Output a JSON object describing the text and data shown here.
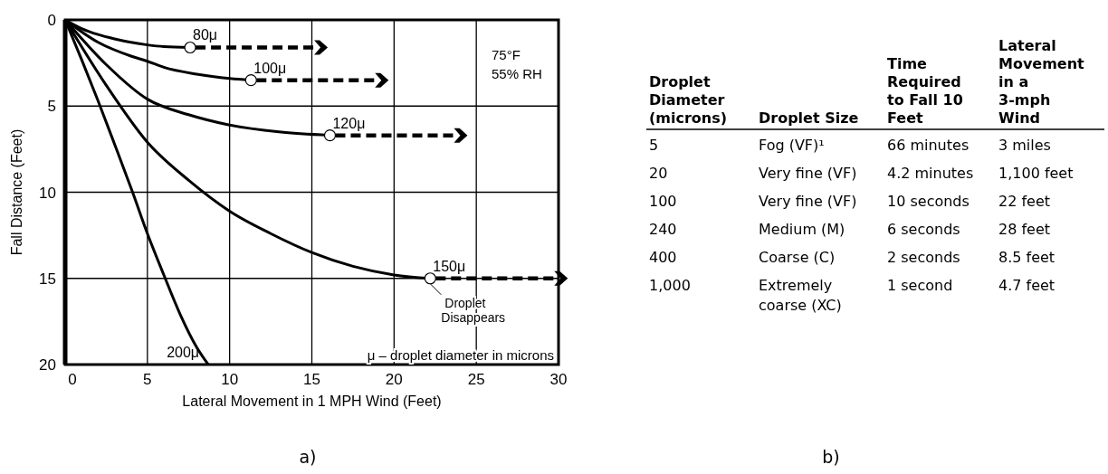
{
  "chart_data": [
    {
      "type": "line",
      "xlabel": "Lateral Movement in 1 MPH Wind (Feet)",
      "ylabel": "Fall Distance (Feet)",
      "xlim": [
        0,
        30
      ],
      "ylim": [
        20,
        0
      ],
      "xticks": [
        0,
        5,
        10,
        15,
        20,
        25,
        30
      ],
      "yticks": [
        0,
        5,
        10,
        15,
        20
      ],
      "grid": true,
      "series": [
        {
          "color": "#000000",
          "x": [
            0,
            1,
            2,
            3,
            4,
            5,
            6,
            7.6
          ],
          "values": [
            0,
            0.5,
            0.85,
            1.1,
            1.3,
            1.45,
            1.55,
            1.6
          ]
        },
        {
          "color": "#000000",
          "x": [
            0,
            2,
            4,
            5,
            6,
            8,
            10,
            11.3
          ],
          "values": [
            0,
            1.3,
            2.1,
            2.4,
            2.75,
            3.15,
            3.4,
            3.5
          ]
        },
        {
          "color": "#000000",
          "x": [
            0,
            2.5,
            5,
            7.5,
            10,
            13,
            16.1
          ],
          "values": [
            0,
            2.6,
            4.6,
            5.5,
            6.1,
            6.5,
            6.7
          ]
        },
        {
          "color": "#000000",
          "x": [
            0,
            2.5,
            5,
            7.5,
            10,
            12.5,
            15,
            17.5,
            20,
            22.2
          ],
          "values": [
            0,
            3.8,
            7.1,
            9.3,
            11.1,
            12.4,
            13.5,
            14.3,
            14.8,
            15
          ]
        },
        {
          "color": "#000000",
          "x": [
            0,
            1,
            2,
            3,
            4.1,
            5,
            6,
            7,
            8,
            8.7
          ],
          "values": [
            0,
            2.3,
            4.7,
            7.2,
            10,
            12.4,
            14.8,
            17.1,
            19,
            20
          ]
        },
        {
          "type": "scatter",
          "marker": "circle",
          "color": "#ffffff",
          "x": [
            7.6,
            11.3,
            16.1,
            22.2
          ],
          "values": [
            1.6,
            3.5,
            6.7,
            15
          ]
        }
      ],
      "annotations": [
        {
          "text": "80μ",
          "x": 7.6,
          "y": 1.6
        },
        {
          "text": "100μ",
          "x": 11.3,
          "y": 3.5
        },
        {
          "text": "120μ",
          "x": 16.1,
          "y": 6.7
        },
        {
          "text": "150μ",
          "x": 22.2,
          "y": 15
        },
        {
          "text": "Droplet Disappears",
          "x": 22.2,
          "y": 15
        },
        {
          "text": "200μ",
          "x": 8.7,
          "y": 20
        },
        "75°F",
        "55% RH",
        "μ – droplet diameter in microns",
        "a)"
      ]
    },
    {
      "type": "other",
      "annotations": [
        "Droplet Diameter (microns)",
        "Droplet Size",
        "Time Required to Fall 10 Feet",
        "Lateral Movement in a 3-mph Wind",
        "5",
        "Fog (VF)¹",
        "66 minutes",
        "3 miles",
        "20",
        "Very fine (VF)",
        "4.2 minutes",
        "1,100 feet",
        "100",
        "Very fine (VF)",
        "10 seconds",
        "22 feet",
        "240",
        "Medium (M)",
        "6 seconds",
        "28 feet",
        "400",
        "Coarse (C)",
        "2 seconds",
        "8.5 feet",
        "1,000",
        "Extremely coarse (XC)",
        "1 second",
        "4.7 feet",
        "b)"
      ]
    }
  ]
}
